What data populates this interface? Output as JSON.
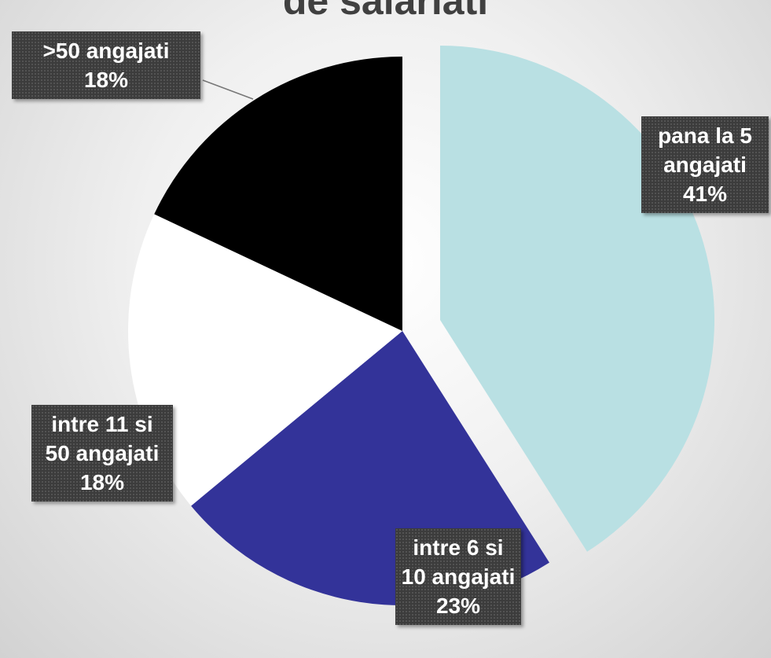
{
  "chart_data": {
    "type": "pie",
    "title": "de salariati",
    "categories": [
      "pana la 5 angajati",
      "intre 6 si 10 angajati",
      "intre 11 si 50 angajati",
      ">50 angajati"
    ],
    "values": [
      41,
      23,
      18,
      18
    ],
    "value_labels": [
      "41%",
      "23%",
      "18%",
      "18%"
    ],
    "colors": [
      "#b9e0e3",
      "#333399",
      "#ffffff",
      "#000000"
    ],
    "exploded": [
      true,
      false,
      false,
      false
    ]
  }
}
